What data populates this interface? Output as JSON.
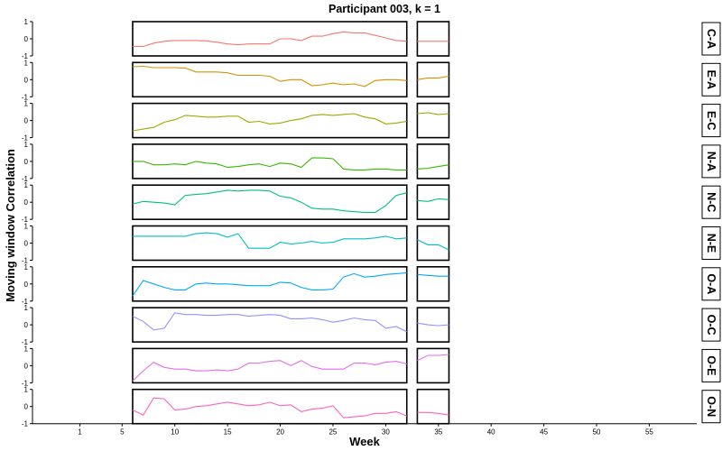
{
  "chart_data": {
    "type": "line",
    "title": "Participant 003, k = 1",
    "xlabel": "Week",
    "ylabel": "Moving window Correlation",
    "xlim": [
      -3.5,
      59.5
    ],
    "ylim": [
      -1,
      1
    ],
    "x_ticks": [
      1,
      5,
      10,
      15,
      20,
      25,
      30,
      35,
      40,
      45,
      50,
      55
    ],
    "y_ticks": [
      -1,
      0,
      1
    ],
    "segments": [
      [
        6,
        32
      ],
      [
        33,
        36
      ]
    ],
    "panels": [
      {
        "name": "C-A",
        "color": "#F8766D",
        "x": [
          6,
          7,
          8,
          9,
          10,
          11,
          12,
          13,
          14,
          15,
          16,
          17,
          18,
          19,
          20,
          21,
          22,
          23,
          24,
          25,
          26,
          27,
          28,
          29,
          30,
          31,
          32,
          33,
          34,
          35,
          36
        ],
        "values": [
          -0.45,
          -0.45,
          -0.25,
          -0.15,
          -0.1,
          -0.1,
          -0.1,
          -0.12,
          -0.2,
          -0.3,
          -0.35,
          -0.3,
          -0.3,
          -0.3,
          0.0,
          0.0,
          -0.1,
          0.15,
          0.15,
          0.3,
          0.4,
          0.35,
          0.35,
          0.2,
          0.05,
          -0.1,
          -0.15,
          -0.15,
          -0.15,
          -0.15,
          -0.15
        ]
      },
      {
        "name": "E-A",
        "color": "#D89000",
        "x": [
          6,
          7,
          8,
          9,
          10,
          11,
          12,
          13,
          14,
          15,
          16,
          17,
          18,
          19,
          20,
          21,
          22,
          23,
          24,
          25,
          26,
          27,
          28,
          29,
          30,
          31,
          32,
          33,
          34,
          35,
          36
        ],
        "values": [
          0.75,
          0.78,
          0.7,
          0.7,
          0.7,
          0.68,
          0.45,
          0.45,
          0.45,
          0.4,
          0.25,
          0.25,
          0.25,
          0.2,
          -0.1,
          0.0,
          0.0,
          -0.35,
          -0.3,
          -0.2,
          -0.3,
          -0.25,
          -0.4,
          -0.05,
          0.0,
          0.0,
          -0.05,
          0.0,
          0.1,
          0.1,
          0.2
        ]
      },
      {
        "name": "E-C",
        "color": "#A3A500",
        "x": [
          6,
          7,
          8,
          9,
          10,
          11,
          12,
          13,
          14,
          15,
          16,
          17,
          18,
          19,
          20,
          21,
          22,
          23,
          24,
          25,
          26,
          27,
          28,
          29,
          30,
          31,
          32,
          33,
          34,
          35,
          36
        ],
        "values": [
          -0.6,
          -0.5,
          -0.4,
          -0.1,
          0.05,
          0.3,
          0.25,
          0.2,
          0.2,
          0.25,
          0.25,
          -0.1,
          -0.05,
          -0.2,
          -0.15,
          0.0,
          0.1,
          0.3,
          0.35,
          0.3,
          0.35,
          0.4,
          0.2,
          0.1,
          -0.2,
          -0.15,
          -0.05,
          0.4,
          0.45,
          0.35,
          0.4
        ]
      },
      {
        "name": "N-A",
        "color": "#39B600",
        "x": [
          6,
          7,
          8,
          9,
          10,
          11,
          12,
          13,
          14,
          15,
          16,
          17,
          18,
          19,
          20,
          21,
          22,
          23,
          24,
          25,
          26,
          27,
          28,
          29,
          30,
          31,
          32,
          33,
          34,
          35,
          36
        ],
        "values": [
          0.0,
          0.0,
          -0.2,
          -0.2,
          -0.15,
          -0.2,
          0.0,
          -0.1,
          -0.15,
          -0.35,
          -0.3,
          -0.2,
          -0.15,
          -0.3,
          -0.1,
          -0.15,
          -0.35,
          0.2,
          0.2,
          0.15,
          -0.45,
          -0.5,
          -0.5,
          -0.45,
          -0.45,
          -0.5,
          -0.5,
          -0.45,
          -0.4,
          -0.3,
          -0.2
        ]
      },
      {
        "name": "N-C",
        "color": "#00BF7D",
        "x": [
          6,
          7,
          8,
          9,
          10,
          11,
          12,
          13,
          14,
          15,
          16,
          17,
          18,
          19,
          20,
          21,
          22,
          23,
          24,
          25,
          26,
          27,
          28,
          29,
          30,
          31,
          32,
          33,
          34,
          35,
          36
        ],
        "values": [
          -0.1,
          0.05,
          0.0,
          -0.05,
          -0.15,
          0.4,
          0.45,
          0.5,
          0.6,
          0.7,
          0.65,
          0.7,
          0.7,
          0.65,
          0.35,
          0.25,
          0.0,
          -0.35,
          -0.4,
          -0.4,
          -0.5,
          -0.55,
          -0.6,
          -0.6,
          -0.2,
          0.4,
          0.55,
          0.1,
          0.05,
          0.2,
          0.15
        ]
      },
      {
        "name": "N-E",
        "color": "#00BFC4",
        "x": [
          6,
          7,
          8,
          9,
          10,
          11,
          12,
          13,
          14,
          15,
          16,
          17,
          18,
          19,
          20,
          21,
          22,
          23,
          24,
          25,
          26,
          27,
          28,
          29,
          30,
          31,
          32,
          33,
          34,
          35,
          36
        ],
        "values": [
          0.4,
          0.4,
          0.4,
          0.4,
          0.4,
          0.4,
          0.55,
          0.6,
          0.55,
          0.35,
          0.55,
          -0.3,
          -0.3,
          -0.3,
          0.05,
          -0.05,
          0.0,
          0.1,
          0.0,
          0.05,
          0.25,
          0.25,
          0.25,
          0.3,
          0.4,
          0.25,
          0.3,
          0.2,
          -0.1,
          -0.1,
          -0.4
        ]
      },
      {
        "name": "O-A",
        "color": "#00A9FF",
        "x": [
          6,
          7,
          8,
          9,
          10,
          11,
          12,
          13,
          14,
          15,
          16,
          17,
          18,
          19,
          20,
          21,
          22,
          23,
          24,
          25,
          26,
          27,
          28,
          29,
          30,
          31,
          32,
          33,
          34,
          35,
          36
        ],
        "values": [
          -0.7,
          0.2,
          0.0,
          -0.2,
          -0.35,
          -0.35,
          0.0,
          0.05,
          0.0,
          0.0,
          -0.05,
          -0.1,
          -0.1,
          -0.1,
          0.1,
          0.05,
          -0.2,
          -0.35,
          -0.35,
          -0.3,
          0.4,
          0.6,
          0.4,
          0.45,
          0.55,
          0.6,
          0.65,
          0.55,
          0.5,
          0.45,
          0.45
        ]
      },
      {
        "name": "O-C",
        "color": "#9590FF",
        "x": [
          6,
          7,
          8,
          9,
          10,
          11,
          12,
          13,
          14,
          15,
          16,
          17,
          18,
          19,
          20,
          21,
          22,
          23,
          24,
          25,
          26,
          27,
          28,
          29,
          30,
          31,
          32,
          33,
          34,
          35,
          36
        ],
        "values": [
          0.5,
          0.2,
          -0.3,
          -0.2,
          0.7,
          0.6,
          0.6,
          0.55,
          0.55,
          0.6,
          0.6,
          0.5,
          0.55,
          0.6,
          0.55,
          0.35,
          0.35,
          0.4,
          0.3,
          0.15,
          0.25,
          0.4,
          0.3,
          0.25,
          -0.2,
          -0.1,
          -0.4,
          0.1,
          0.0,
          -0.05,
          0.0
        ]
      },
      {
        "name": "O-E",
        "color": "#E76BF3",
        "x": [
          6,
          7,
          8,
          9,
          10,
          11,
          12,
          13,
          14,
          15,
          16,
          17,
          18,
          19,
          20,
          21,
          22,
          23,
          24,
          25,
          26,
          27,
          28,
          29,
          30,
          31,
          32,
          33,
          34,
          35,
          36
        ],
        "values": [
          -0.9,
          -0.3,
          0.2,
          -0.1,
          -0.2,
          -0.2,
          -0.3,
          -0.3,
          -0.25,
          -0.3,
          -0.2,
          0.15,
          0.15,
          0.25,
          0.3,
          0.0,
          0.3,
          -0.05,
          -0.2,
          -0.2,
          -0.2,
          0.15,
          0.15,
          0.05,
          0.2,
          0.25,
          0.1,
          0.3,
          0.6,
          0.6,
          0.65
        ]
      },
      {
        "name": "O-N",
        "color": "#FF62BC",
        "x": [
          6,
          7,
          8,
          9,
          10,
          11,
          12,
          13,
          14,
          15,
          16,
          17,
          18,
          19,
          20,
          21,
          22,
          23,
          24,
          25,
          26,
          27,
          28,
          29,
          30,
          31,
          32,
          33,
          34,
          35,
          36
        ],
        "values": [
          -0.2,
          -0.5,
          0.5,
          0.45,
          -0.2,
          -0.15,
          0.0,
          0.05,
          0.15,
          0.25,
          0.15,
          0.05,
          0.1,
          0.25,
          0.05,
          0.1,
          -0.3,
          -0.15,
          -0.1,
          0.05,
          -0.65,
          -0.6,
          -0.55,
          -0.4,
          -0.4,
          -0.3,
          -0.55,
          -0.35,
          -0.35,
          -0.4,
          -0.5
        ]
      }
    ]
  }
}
